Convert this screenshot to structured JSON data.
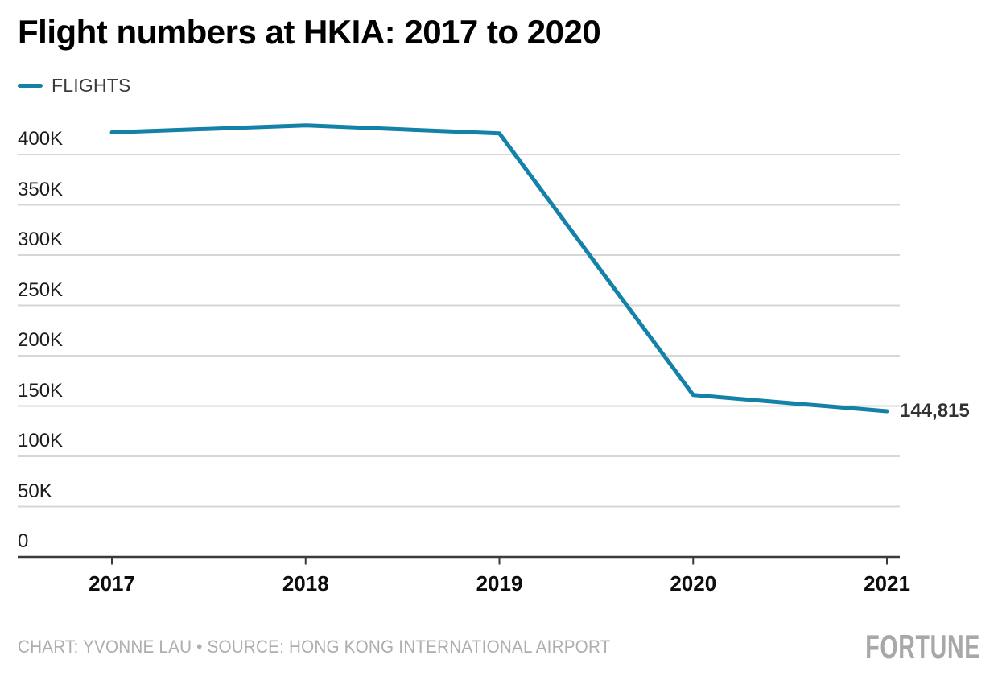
{
  "title": "Flight numbers at HKIA: 2017 to 2020",
  "legend": {
    "label": "FLIGHTS"
  },
  "colors": {
    "line": "#1481a8",
    "grid": "#d6d6d6",
    "axis": "#3a3a3a"
  },
  "chart_data": {
    "type": "line",
    "title": "Flight numbers at HKIA: 2017 to 2020",
    "categories": [
      "2017",
      "2018",
      "2019",
      "2020",
      "2021"
    ],
    "series": [
      {
        "name": "FLIGHTS",
        "x": [
          2017,
          2018,
          2019,
          2020,
          2021
        ],
        "values": [
          422000,
          429000,
          421000,
          161000,
          144815
        ]
      }
    ],
    "end_label": "144,815",
    "ytick_labels": [
      "400K",
      "350K",
      "300K",
      "250K",
      "200K",
      "150K",
      "100K",
      "50K",
      "0"
    ],
    "ytick_values": [
      400000,
      350000,
      300000,
      250000,
      200000,
      150000,
      100000,
      50000,
      0
    ],
    "ylim": [
      0,
      440000
    ],
    "xlabel": "",
    "ylabel": "",
    "grid": "horizontal",
    "legend_position": "top-left"
  },
  "footer": {
    "credit": "CHART: YVONNE LAU • SOURCE: HONG KONG INTERNATIONAL AIRPORT",
    "brand": "FORTUNE"
  }
}
